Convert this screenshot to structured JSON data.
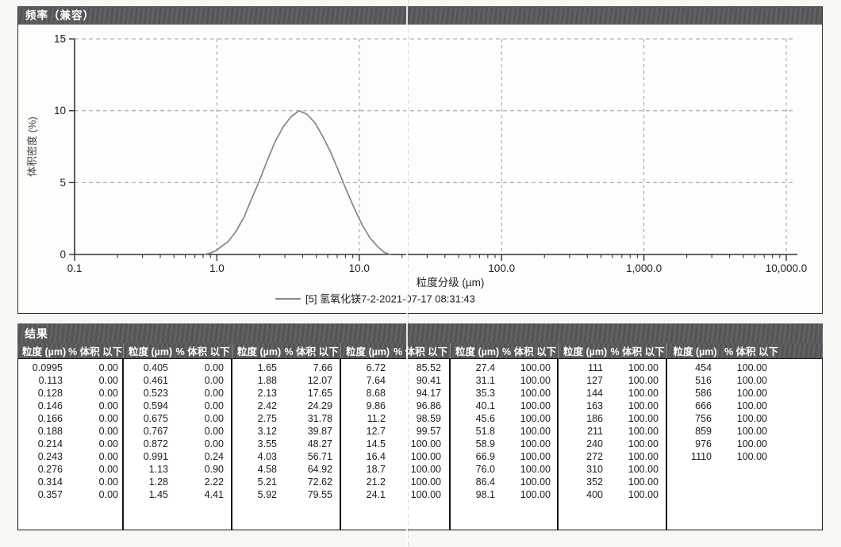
{
  "colors": {
    "titlebar_bg": "#59595b",
    "titlebar_text": "#ffffff",
    "curve": "#8a8a8a",
    "grid": "#9b9b9b",
    "axis": "#333333",
    "table_border": "#161616"
  },
  "chart_panel": {
    "title": "频率（兼容）"
  },
  "chart_data": {
    "type": "line",
    "title": "频率（兼容）",
    "xlabel": "粒度分级 (µm)",
    "ylabel": "体积密度 (%)",
    "x_scale": "log",
    "xlim": [
      0.1,
      10000
    ],
    "ylim": [
      0,
      15
    ],
    "y_ticks": [
      0,
      5,
      10,
      15
    ],
    "x_tick_labels": [
      "0.1",
      "1.0",
      "10.0",
      "100.0",
      "1,000.0",
      "10,000.0"
    ],
    "grid": true,
    "legend_position": "bottom",
    "series": [
      {
        "name": "[5] 氢氧化镁7-2-2021-07-17 08:31:43",
        "color": "#8a8a8a",
        "x": [
          0.82,
          0.9,
          0.99,
          1.06,
          1.2,
          1.36,
          1.55,
          1.76,
          2.0,
          2.27,
          2.58,
          2.93,
          3.33,
          3.78,
          4.3,
          4.89,
          5.55,
          6.31,
          7.16,
          8.14,
          9.25,
          10.5,
          11.9,
          13.6,
          15.0,
          16.5
        ],
        "y": [
          0,
          0.1,
          0.28,
          0.5,
          0.9,
          1.6,
          2.6,
          3.9,
          5.2,
          6.6,
          7.9,
          8.9,
          9.6,
          10.0,
          9.75,
          9.15,
          8.2,
          7.1,
          5.8,
          4.45,
          3.2,
          2.05,
          1.15,
          0.5,
          0.15,
          0
        ]
      }
    ]
  },
  "results": {
    "title": "结果",
    "header": {
      "size": "粒度 (µm)",
      "pct": "% 体积 以下"
    },
    "groups": [
      [
        [
          "0.0995",
          "0.00"
        ],
        [
          "0.113",
          "0.00"
        ],
        [
          "0.128",
          "0.00"
        ],
        [
          "0.146",
          "0.00"
        ],
        [
          "0.166",
          "0.00"
        ],
        [
          "0.188",
          "0.00"
        ],
        [
          "0.214",
          "0.00"
        ],
        [
          "0.243",
          "0.00"
        ],
        [
          "0.276",
          "0.00"
        ],
        [
          "0.314",
          "0.00"
        ],
        [
          "0.357",
          "0.00"
        ]
      ],
      [
        [
          "0.405",
          "0.00"
        ],
        [
          "0.461",
          "0.00"
        ],
        [
          "0.523",
          "0.00"
        ],
        [
          "0.594",
          "0.00"
        ],
        [
          "0.675",
          "0.00"
        ],
        [
          "0.767",
          "0.00"
        ],
        [
          "0.872",
          "0.00"
        ],
        [
          "0.991",
          "0.24"
        ],
        [
          "1.13",
          "0.90"
        ],
        [
          "1.28",
          "2.22"
        ],
        [
          "1.45",
          "4.41"
        ]
      ],
      [
        [
          "1.65",
          "7.66"
        ],
        [
          "1.88",
          "12.07"
        ],
        [
          "2.13",
          "17.65"
        ],
        [
          "2.42",
          "24.29"
        ],
        [
          "2.75",
          "31.78"
        ],
        [
          "3.12",
          "39.87"
        ],
        [
          "3.55",
          "48.27"
        ],
        [
          "4.03",
          "56.71"
        ],
        [
          "4.58",
          "64.92"
        ],
        [
          "5.21",
          "72.62"
        ],
        [
          "5.92",
          "79.55"
        ]
      ],
      [
        [
          "6.72",
          "85.52"
        ],
        [
          "7.64",
          "90.41"
        ],
        [
          "8.68",
          "94.17"
        ],
        [
          "9.86",
          "96.86"
        ],
        [
          "11.2",
          "98.59"
        ],
        [
          "12.7",
          "99.57"
        ],
        [
          "14.5",
          "100.00"
        ],
        [
          "16.4",
          "100.00"
        ],
        [
          "18.7",
          "100.00"
        ],
        [
          "21.2",
          "100.00"
        ],
        [
          "24.1",
          "100.00"
        ]
      ],
      [
        [
          "27.4",
          "100.00"
        ],
        [
          "31.1",
          "100.00"
        ],
        [
          "35.3",
          "100.00"
        ],
        [
          "40.1",
          "100.00"
        ],
        [
          "45.6",
          "100.00"
        ],
        [
          "51.8",
          "100.00"
        ],
        [
          "58.9",
          "100.00"
        ],
        [
          "66.9",
          "100.00"
        ],
        [
          "76.0",
          "100.00"
        ],
        [
          "86.4",
          "100.00"
        ],
        [
          "98.1",
          "100.00"
        ]
      ],
      [
        [
          "111",
          "100.00"
        ],
        [
          "127",
          "100.00"
        ],
        [
          "144",
          "100.00"
        ],
        [
          "163",
          "100.00"
        ],
        [
          "186",
          "100.00"
        ],
        [
          "211",
          "100.00"
        ],
        [
          "240",
          "100.00"
        ],
        [
          "272",
          "100.00"
        ],
        [
          "310",
          "100.00"
        ],
        [
          "352",
          "100.00"
        ],
        [
          "400",
          "100.00"
        ]
      ],
      [
        [
          "454",
          "100.00"
        ],
        [
          "516",
          "100.00"
        ],
        [
          "586",
          "100.00"
        ],
        [
          "666",
          "100.00"
        ],
        [
          "756",
          "100.00"
        ],
        [
          "859",
          "100.00"
        ],
        [
          "976",
          "100.00"
        ],
        [
          "1110",
          "100.00"
        ]
      ]
    ]
  }
}
